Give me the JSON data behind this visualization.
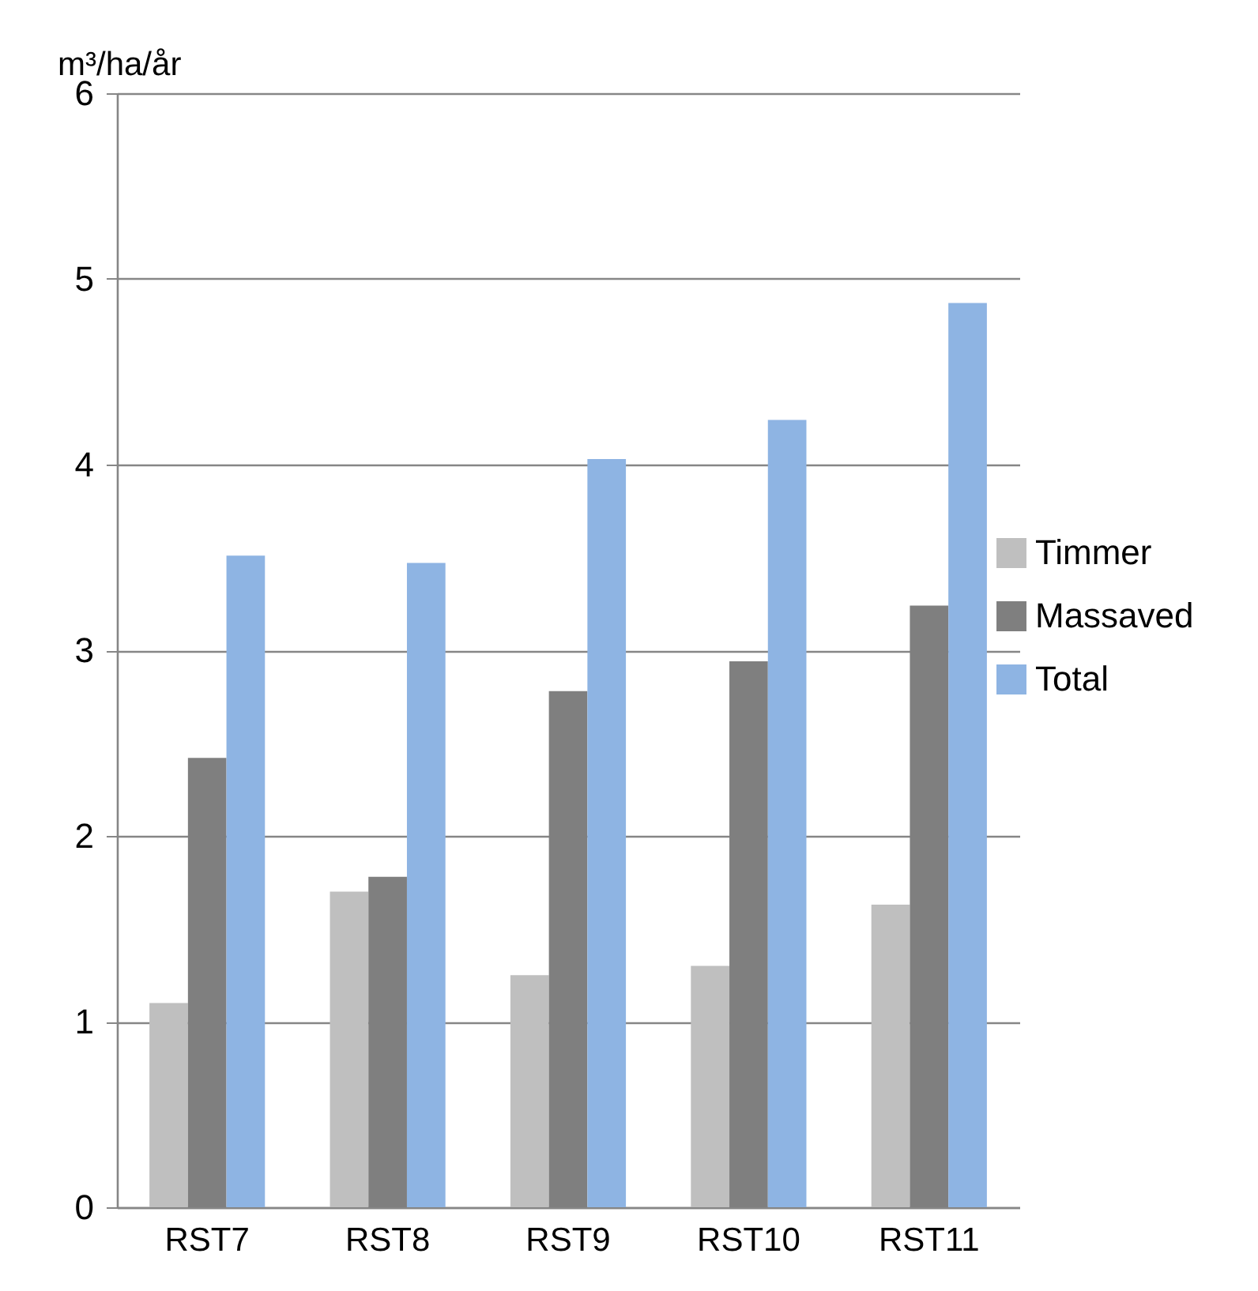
{
  "chart_data": {
    "type": "bar",
    "ylabel": "m³/ha/år",
    "categories": [
      "RST7",
      "RST8",
      "RST9",
      "RST10",
      "RST11"
    ],
    "series": [
      {
        "name": "Timmer",
        "color": "#bfbfbf",
        "values": [
          1.1,
          1.7,
          1.25,
          1.3,
          1.63
        ]
      },
      {
        "name": "Massaved",
        "color": "#7f7f7f",
        "values": [
          2.42,
          1.78,
          2.78,
          2.94,
          3.24
        ]
      },
      {
        "name": "Total",
        "color": "#8eb4e3",
        "values": [
          3.51,
          3.47,
          4.03,
          4.24,
          4.87
        ]
      }
    ],
    "ylim": [
      0,
      6
    ],
    "yticks": [
      0,
      1,
      2,
      3,
      4,
      5,
      6
    ],
    "grid": "y",
    "legend": "right"
  }
}
